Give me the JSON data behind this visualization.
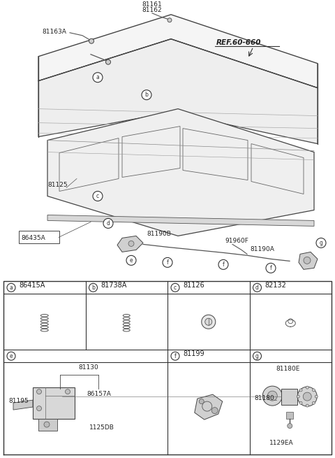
{
  "bg_color": "#ffffff",
  "border_color": "#000000",
  "line_color": "#333333",
  "text_color": "#000000",
  "ref_label": "REF.60-660",
  "col_letters_row1": [
    "a",
    "b",
    "c",
    "d"
  ],
  "col_parts_row1": [
    "86415A",
    "81738A",
    "81126",
    "82132"
  ],
  "col_letters_row2": [
    "e",
    "f",
    "g"
  ],
  "col_parts_row2_f": "81199",
  "row2_parts_e": [
    "81130",
    "81195",
    "86157A",
    "1125DB"
  ],
  "row2_parts_g": [
    "81180E",
    "81180",
    "1129EA"
  ]
}
